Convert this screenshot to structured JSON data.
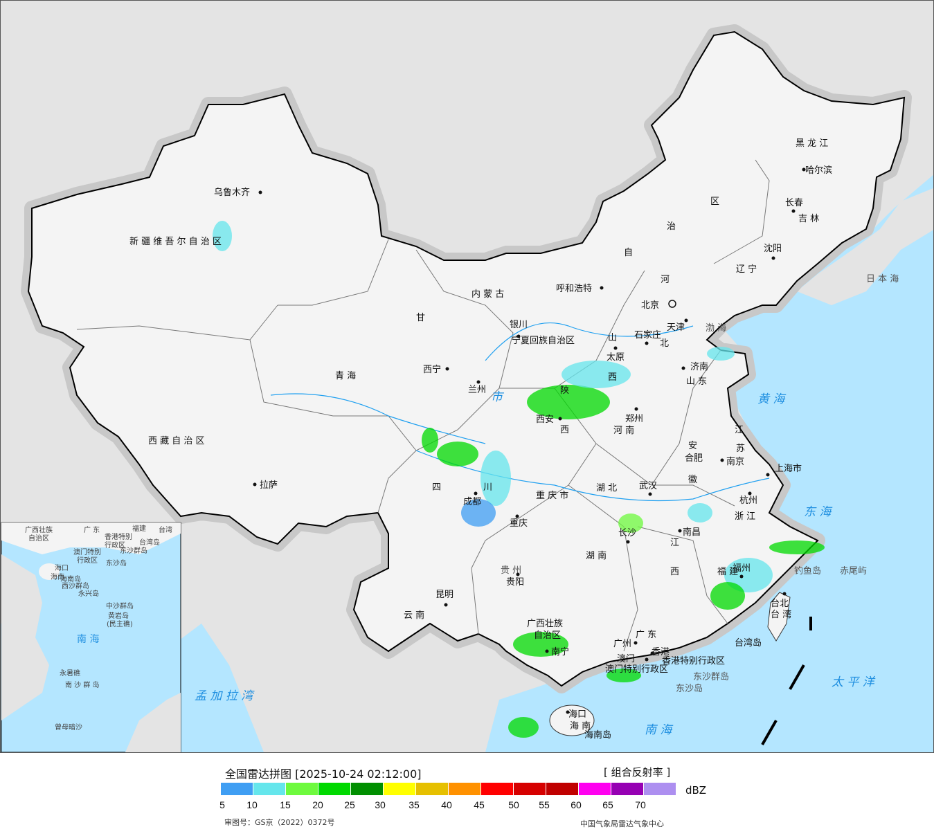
{
  "legend": {
    "title": "全国雷达拼图 [2025-10-24 02:12:00]",
    "product": "[ 组合反射率 ]",
    "unit": "dBZ",
    "ticks": [
      "5",
      "10",
      "15",
      "20",
      "25",
      "30",
      "35",
      "40",
      "45",
      "50",
      "55",
      "60",
      "65",
      "70"
    ],
    "colors": [
      "#3f9ef3",
      "#65e6ec",
      "#6efa3e",
      "#00d900",
      "#008f00",
      "#ffff00",
      "#e6c000",
      "#ff9100",
      "#ff0000",
      "#d60000",
      "#c00000",
      "#ff00f0",
      "#9600b3",
      "#ad8ff0"
    ],
    "approval": "审图号：GS京（2022）0372号",
    "source": "中国气象局雷达气象中心"
  },
  "map": {
    "colors": {
      "land_outside": "#e4e4e4",
      "land_china": "#f4f4f4",
      "sea": "#b4e6ff",
      "border": "#000000"
    },
    "labels": [
      "新 疆 维 吾 尔 自 治 区",
      "乌鲁木齐",
      "西 藏 自 治 区",
      "拉萨",
      "青 海",
      "西宁",
      "甘",
      "兰州",
      "内 蒙 古",
      "呼和浩特",
      "区",
      "治",
      "自",
      "黑 龙 江",
      "哈尔滨",
      "吉 林",
      "长春",
      "辽 宁",
      "沈阳",
      "北京",
      "天津",
      "河",
      "北",
      "石家庄",
      "山",
      "西",
      "太原",
      "山 东",
      "济南",
      "宁夏回族自治区",
      "银川",
      "陕",
      "西",
      "西安",
      "河 南",
      "郑州",
      "四",
      "川",
      "成都",
      "重庆",
      "重 庆 市",
      "湖 北",
      "武汉",
      "湖 南",
      "长沙",
      "江",
      "苏",
      "南京",
      "安",
      "徽",
      "合肥",
      "上海市",
      "杭州",
      "浙 江",
      "江",
      "西",
      "南昌",
      "福 建",
      "福州",
      "台北",
      "台 湾",
      "台湾岛",
      "贵 州",
      "贵阳",
      "云 南",
      "昆明",
      "广西壮族",
      "自治区",
      "南宁",
      "广 东",
      "广州",
      "香港",
      "香港特别行政区",
      "澳门",
      "澳门特别行政区",
      "海口",
      "海 南",
      "海南岛",
      "东沙群岛",
      "东沙岛",
      "钓鱼岛",
      "赤尾屿",
      "日 本 海",
      "渤 海",
      "黄 海",
      "东 海",
      "太 平 洋",
      "南 海",
      "孟 加 拉 湾",
      "市"
    ],
    "inset_labels": [
      "广西壮族",
      "自治区",
      "广 东",
      "福建",
      "台湾",
      "香港特别",
      "行政区",
      "台湾岛",
      "澳门特别",
      "行政区",
      "东沙群岛",
      "东沙岛",
      "海口",
      "海南",
      "海南岛",
      "西沙群岛",
      "永兴岛",
      "中沙群岛",
      "黄岩岛",
      "(民主礁)",
      "南 海",
      "永暑礁",
      "南 沙 群 岛",
      "曾母暗沙"
    ]
  }
}
